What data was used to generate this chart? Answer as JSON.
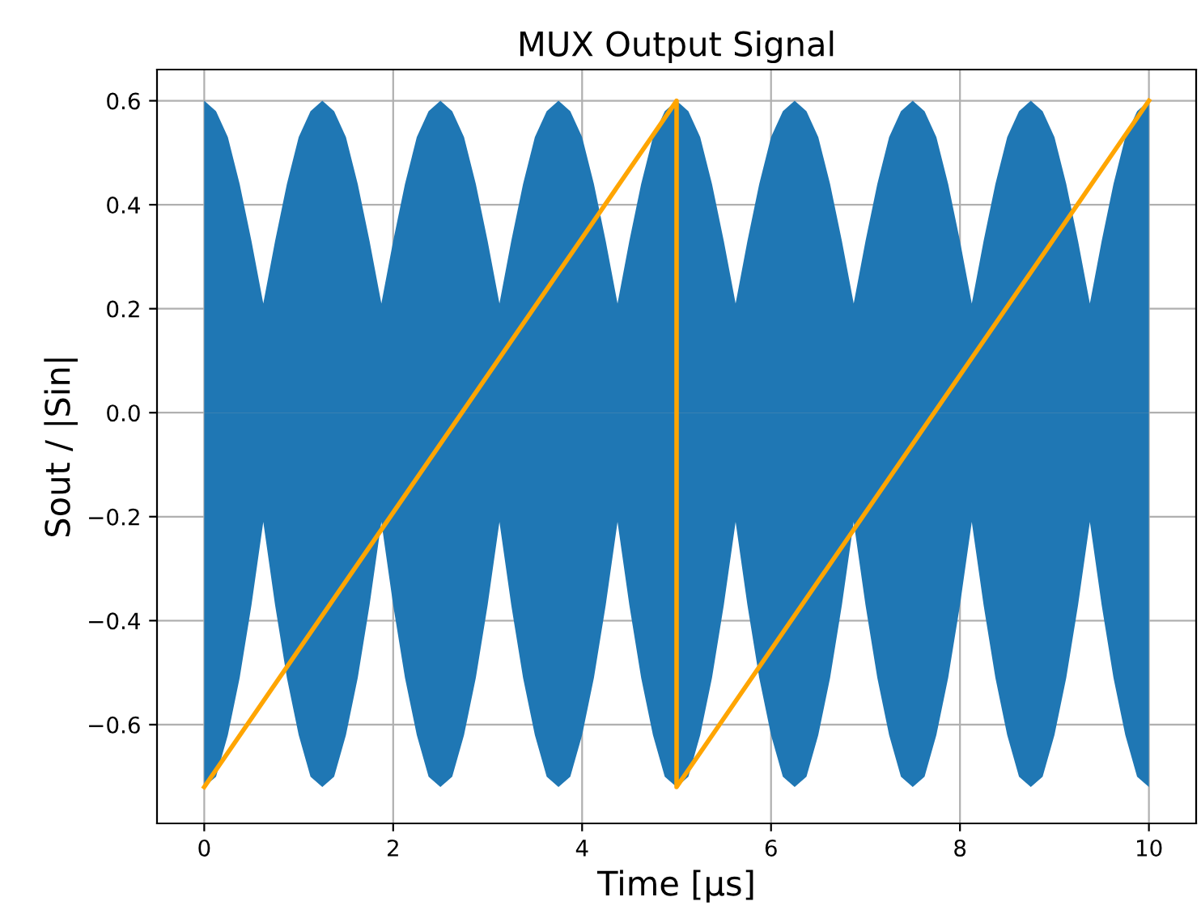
{
  "chart_data": {
    "type": "area",
    "title": "MUX Output Signal",
    "xlabel": "Time [μs]",
    "ylabel": "Sout / |Sin|",
    "xlim": [
      -0.5,
      10.5
    ],
    "ylim": [
      -0.79,
      0.66
    ],
    "xticks": [
      0,
      2,
      4,
      6,
      8,
      10
    ],
    "yticks": [
      {
        "value": -0.6,
        "label": "−0.6"
      },
      {
        "value": -0.4,
        "label": "−0.4"
      },
      {
        "value": -0.2,
        "label": "−0.2"
      },
      {
        "value": 0.0,
        "label": "0.0"
      },
      0.2,
      0.4,
      0.6
    ],
    "grid": true,
    "series": [
      {
        "color": "#1f77b4",
        "x": [
          0,
          0.125,
          0.25,
          0.375,
          0.5,
          0.625,
          0.75,
          0.875,
          1,
          1.125,
          1.25,
          1.375,
          1.5,
          1.625,
          1.75,
          1.875,
          2,
          2.125,
          2.25,
          2.375,
          2.5,
          2.625,
          2.75,
          2.875,
          3,
          3.125,
          3.25,
          3.375,
          3.5,
          3.625,
          3.75,
          3.875,
          4,
          4.125,
          4.25,
          4.375,
          4.5,
          4.625,
          4.75,
          4.875,
          5,
          5.125,
          5.25,
          5.375,
          5.5,
          5.625,
          5.75,
          5.875,
          6,
          6.125,
          6.25,
          6.375,
          6.5,
          6.625,
          6.75,
          6.875,
          7,
          7.125,
          7.25,
          7.375,
          7.5,
          7.625,
          7.75,
          7.875,
          8,
          8.125,
          8.25,
          8.375,
          8.5,
          8.625,
          8.75,
          8.875,
          9,
          9.125,
          9.25,
          9.375,
          9.5,
          9.625,
          9.75,
          9.875,
          10
        ],
        "values": [
          0.6,
          0.58,
          0.53,
          0.44,
          0.33,
          0.21,
          0.33,
          0.44,
          0.53,
          0.58,
          0.6,
          0.58,
          0.53,
          0.44,
          0.33,
          0.21,
          0.33,
          0.44,
          0.53,
          0.58,
          0.6,
          0.58,
          0.53,
          0.44,
          0.33,
          0.21,
          0.33,
          0.44,
          0.53,
          0.58,
          0.6,
          0.58,
          0.53,
          0.44,
          0.33,
          0.21,
          0.33,
          0.44,
          0.53,
          0.58,
          0.6,
          0.58,
          0.53,
          0.44,
          0.33,
          0.21,
          0.33,
          0.44,
          0.53,
          0.58,
          0.6,
          0.58,
          0.53,
          0.44,
          0.33,
          0.21,
          0.33,
          0.44,
          0.53,
          0.58,
          0.6,
          0.58,
          0.53,
          0.44,
          0.33,
          0.21,
          0.33,
          0.44,
          0.53,
          0.58,
          0.6,
          0.58,
          0.53,
          0.44,
          0.33,
          0.21,
          0.33,
          0.44,
          0.53,
          0.58,
          0.6
        ]
      },
      {
        "color": "#1f77b4",
        "x": [
          0,
          0.125,
          0.25,
          0.375,
          0.5,
          0.625,
          0.75,
          0.875,
          1,
          1.125,
          1.25,
          1.375,
          1.5,
          1.625,
          1.75,
          1.875,
          2,
          2.125,
          2.25,
          2.375,
          2.5,
          2.625,
          2.75,
          2.875,
          3,
          3.125,
          3.25,
          3.375,
          3.5,
          3.625,
          3.75,
          3.875,
          4,
          4.125,
          4.25,
          4.375,
          4.5,
          4.625,
          4.75,
          4.875,
          5,
          5.125,
          5.25,
          5.375,
          5.5,
          5.625,
          5.75,
          5.875,
          6,
          6.125,
          6.25,
          6.375,
          6.5,
          6.625,
          6.75,
          6.875,
          7,
          7.125,
          7.25,
          7.375,
          7.5,
          7.625,
          7.75,
          7.875,
          8,
          8.125,
          8.25,
          8.375,
          8.5,
          8.625,
          8.75,
          8.875,
          9,
          9.125,
          9.25,
          9.375,
          9.5,
          9.625,
          9.75,
          9.875,
          10
        ],
        "values": [
          -0.72,
          -0.7,
          -0.62,
          -0.51,
          -0.37,
          -0.21,
          -0.37,
          -0.51,
          -0.62,
          -0.7,
          -0.72,
          -0.7,
          -0.62,
          -0.51,
          -0.37,
          -0.21,
          -0.37,
          -0.51,
          -0.62,
          -0.7,
          -0.72,
          -0.7,
          -0.62,
          -0.51,
          -0.37,
          -0.21,
          -0.37,
          -0.51,
          -0.62,
          -0.7,
          -0.72,
          -0.7,
          -0.62,
          -0.51,
          -0.37,
          -0.21,
          -0.37,
          -0.51,
          -0.62,
          -0.7,
          -0.72,
          -0.7,
          -0.62,
          -0.51,
          -0.37,
          -0.21,
          -0.37,
          -0.51,
          -0.62,
          -0.7,
          -0.72,
          -0.7,
          -0.62,
          -0.51,
          -0.37,
          -0.21,
          -0.37,
          -0.51,
          -0.62,
          -0.7,
          -0.72,
          -0.7,
          -0.62,
          -0.51,
          -0.37,
          -0.21,
          -0.37,
          -0.51,
          -0.62,
          -0.7,
          -0.72,
          -0.7,
          -0.62,
          -0.51,
          -0.37,
          -0.21,
          -0.37,
          -0.51,
          -0.62,
          -0.7,
          -0.72
        ]
      },
      {
        "type": "line",
        "color": "#ffa500",
        "x": [
          0,
          5,
          5,
          10
        ],
        "values": [
          -0.72,
          0.6,
          -0.72,
          0.6
        ]
      }
    ]
  }
}
